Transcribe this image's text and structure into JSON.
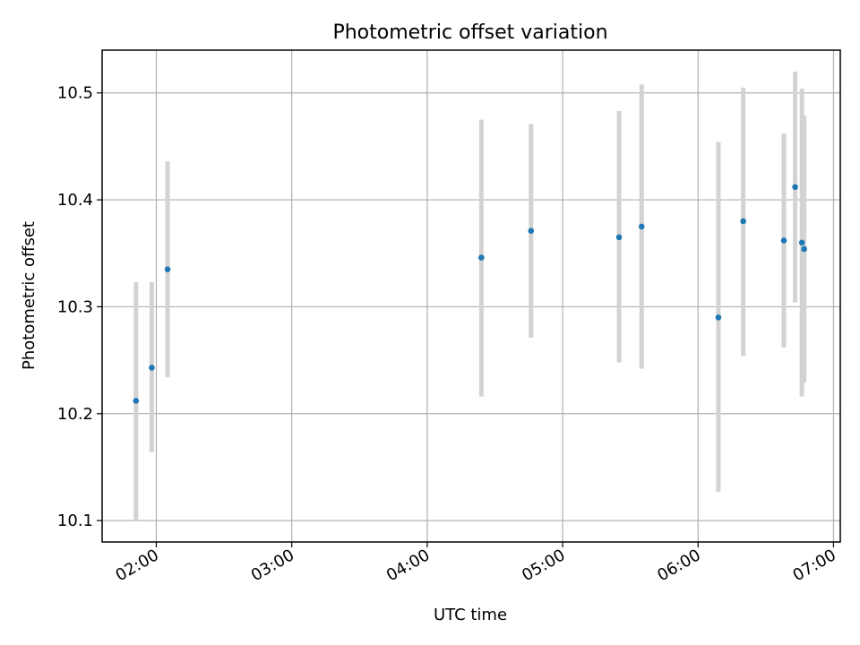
{
  "chart_data": {
    "type": "scatter",
    "title": "Photometric offset variation",
    "xlabel": "UTC time",
    "ylabel": "Photometric offset",
    "x_axis_type": "time",
    "xlim": [
      "01:36",
      "07:03"
    ],
    "ylim": [
      10.08,
      10.54
    ],
    "x_ticks": [
      "02:00",
      "03:00",
      "04:00",
      "05:00",
      "06:00",
      "07:00"
    ],
    "y_ticks": [
      10.1,
      10.2,
      10.3,
      10.4,
      10.5
    ],
    "y_tick_labels": [
      "10.1",
      "10.2",
      "10.3",
      "10.4",
      "10.5"
    ],
    "grid": true,
    "colors": {
      "point": "#1f77b4",
      "errorbar": "#d3d3d3",
      "grid": "#b0b0b0",
      "axis": "#000000"
    },
    "points": [
      {
        "x": "01:51",
        "y": 10.212,
        "err_low": 10.1,
        "err_high": 10.323
      },
      {
        "x": "01:58",
        "y": 10.243,
        "err_low": 10.164,
        "err_high": 10.323
      },
      {
        "x": "02:05",
        "y": 10.335,
        "err_low": 10.234,
        "err_high": 10.436
      },
      {
        "x": "04:24",
        "y": 10.346,
        "err_low": 10.216,
        "err_high": 10.475
      },
      {
        "x": "04:46",
        "y": 10.371,
        "err_low": 10.271,
        "err_high": 10.471
      },
      {
        "x": "05:25",
        "y": 10.365,
        "err_low": 10.248,
        "err_high": 10.483
      },
      {
        "x": "05:35",
        "y": 10.375,
        "err_low": 10.242,
        "err_high": 10.508
      },
      {
        "x": "06:09",
        "y": 10.29,
        "err_low": 10.127,
        "err_high": 10.454
      },
      {
        "x": "06:20",
        "y": 10.38,
        "err_low": 10.254,
        "err_high": 10.505
      },
      {
        "x": "06:38",
        "y": 10.362,
        "err_low": 10.262,
        "err_high": 10.462
      },
      {
        "x": "06:43",
        "y": 10.412,
        "err_low": 10.304,
        "err_high": 10.52
      },
      {
        "x": "06:46",
        "y": 10.36,
        "err_low": 10.216,
        "err_high": 10.504
      },
      {
        "x": "06:47",
        "y": 10.354,
        "err_low": 10.229,
        "err_high": 10.479
      }
    ]
  }
}
